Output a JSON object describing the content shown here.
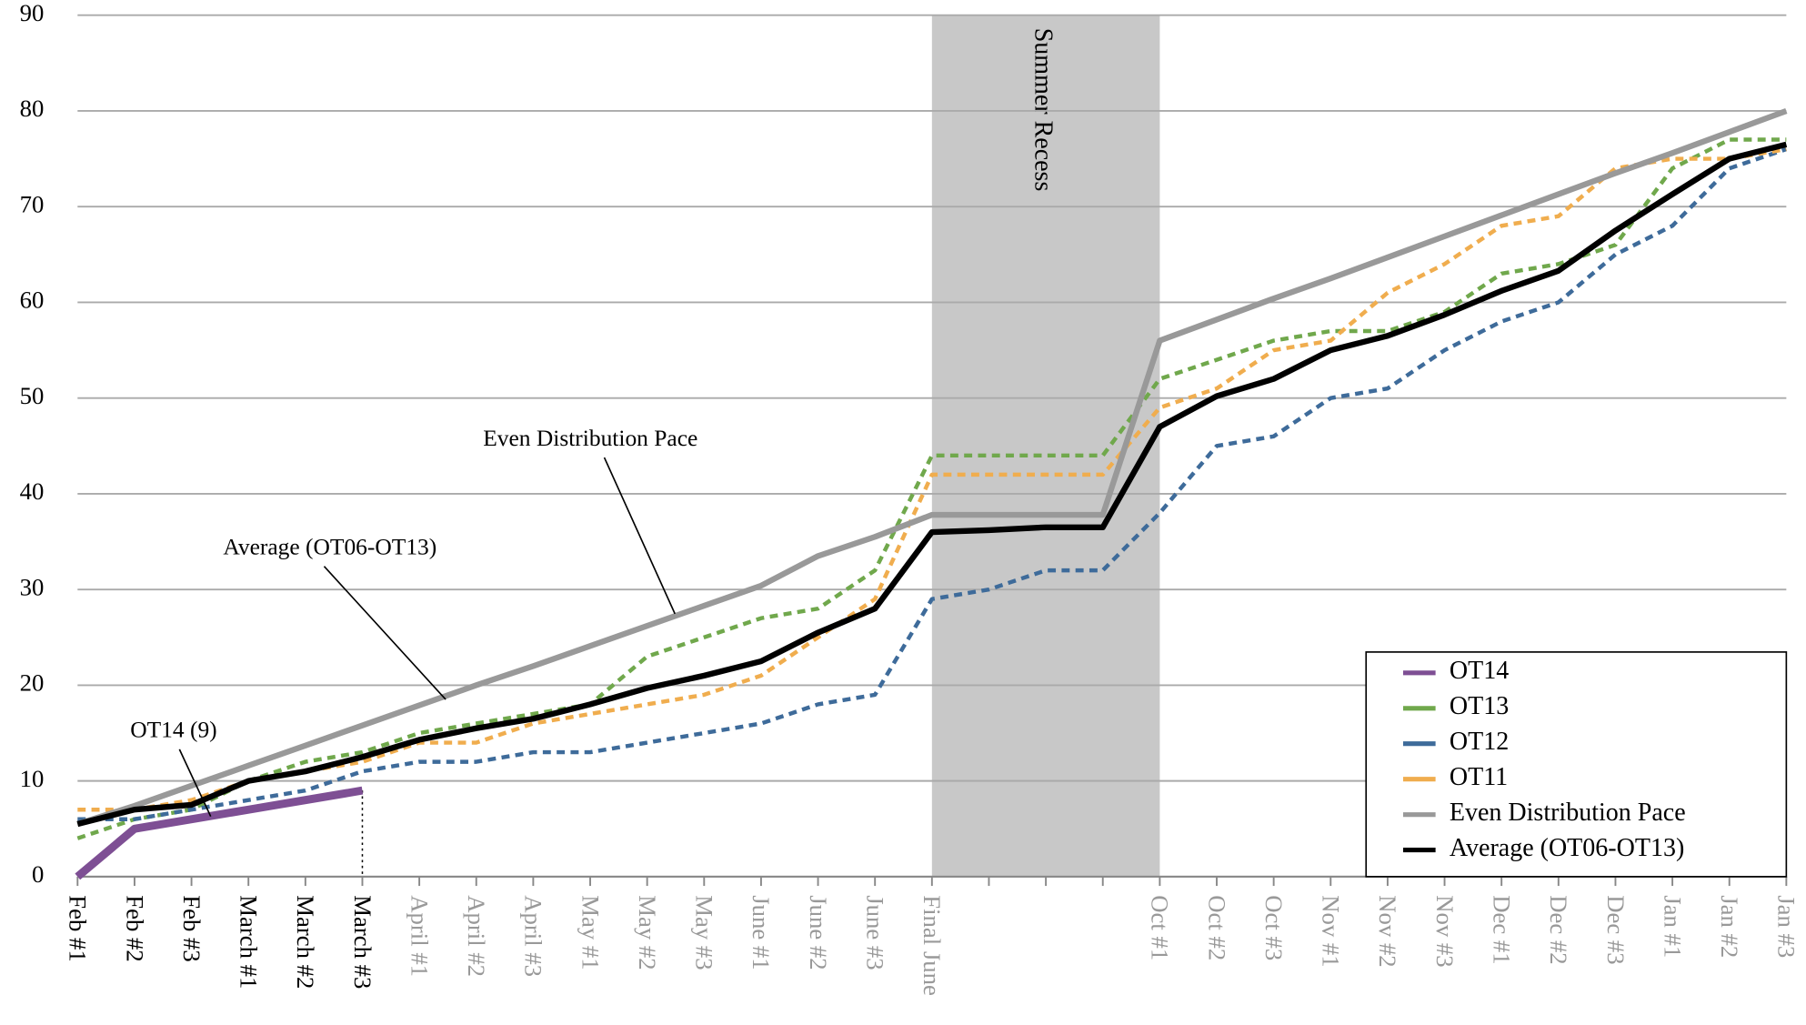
{
  "chart_data": {
    "type": "line",
    "categories": [
      "Feb #1",
      "Feb #2",
      "Feb #3",
      "March #1",
      "March #2",
      "March #3",
      "April #1",
      "April #2",
      "April #3",
      "May #1",
      "May #2",
      "May #3",
      "June #1",
      "June #2",
      "June #3",
      "Final June",
      null,
      null,
      null,
      "Oct #1",
      "Oct #2",
      "Oct #3",
      "Nov #1",
      "Nov #2",
      "Nov #3",
      "Dec #1",
      "Dec #2",
      "Dec #3",
      "Jan #1",
      "Jan #2",
      "Jan #3"
    ],
    "ylim": [
      0,
      90
    ],
    "yticks": [
      0,
      10,
      20,
      30,
      40,
      50,
      60,
      70,
      80,
      90
    ],
    "grid": true,
    "legend": "lower right",
    "shaded_region": {
      "from": "Final June",
      "to": "Oct #1",
      "label": "Summer Recess",
      "color": "#c8c8c8"
    },
    "annotations": [
      {
        "text": "Even Distribution Pace"
      },
      {
        "text": "Average (OT06-OT13)"
      },
      {
        "text": "OT14 (9)"
      }
    ],
    "series": [
      {
        "name": "OT14",
        "color": "#7e4f94",
        "dashed": false,
        "width": 7,
        "values": [
          0,
          5,
          6,
          7,
          8,
          9,
          null,
          null,
          null,
          null,
          null,
          null,
          null,
          null,
          null,
          null,
          null,
          null,
          null,
          null,
          null,
          null,
          null,
          null,
          null,
          null,
          null,
          null,
          null,
          null,
          null
        ]
      },
      {
        "name": "OT13",
        "color": "#70a84c",
        "dashed": true,
        "width": 3.5,
        "values": [
          4,
          6,
          7,
          10,
          12,
          13,
          15,
          16,
          17,
          18,
          23,
          25,
          27,
          28,
          32,
          44,
          44,
          44,
          44,
          52,
          54,
          56,
          57,
          57,
          59,
          63,
          64,
          66,
          74,
          77,
          77
        ]
      },
      {
        "name": "OT12",
        "color": "#3e6b9a",
        "dashed": true,
        "width": 3.5,
        "values": [
          6,
          6,
          7,
          8,
          9,
          11,
          12,
          12,
          13,
          13,
          14,
          15,
          16,
          18,
          19,
          29,
          30,
          32,
          32,
          38,
          45,
          46,
          50,
          51,
          55,
          58,
          60,
          65,
          68,
          74,
          76
        ]
      },
      {
        "name": "OT11",
        "color": "#f0ad4e",
        "dashed": true,
        "width": 3.5,
        "values": [
          7,
          7,
          8,
          10,
          11,
          12,
          14,
          14,
          16,
          17,
          18,
          19,
          21,
          25,
          29,
          42,
          42,
          42,
          42,
          49,
          51,
          55,
          56,
          61,
          64,
          68,
          69,
          74,
          75,
          75,
          76
        ]
      },
      {
        "name": "Even Distribution Pace",
        "color": "#999999",
        "dashed": false,
        "width": 5,
        "values": [
          5.5,
          7.4,
          9.5,
          11.6,
          13.7,
          15.8,
          17.9,
          20,
          22,
          24.1,
          26.2,
          28.3,
          30.4,
          33.5,
          35.5,
          37.8,
          37.8,
          37.8,
          37.8,
          56,
          58.2,
          60.4,
          62.5,
          64.7,
          66.9,
          69.1,
          71.3,
          73.5,
          75.6,
          77.8,
          80
        ]
      },
      {
        "name": "Average (OT06-OT13)",
        "color": "#000000",
        "dashed": false,
        "width": 5,
        "values": [
          5.5,
          7,
          7.5,
          10,
          11,
          12.5,
          14.3,
          15.5,
          16.5,
          18,
          19.7,
          21,
          22.5,
          25.5,
          28,
          36,
          36.2,
          36.5,
          36.5,
          47,
          50.2,
          52,
          55,
          56.5,
          58.7,
          61.2,
          63.3,
          67.5,
          71.3,
          75,
          76.5
        ]
      }
    ]
  }
}
